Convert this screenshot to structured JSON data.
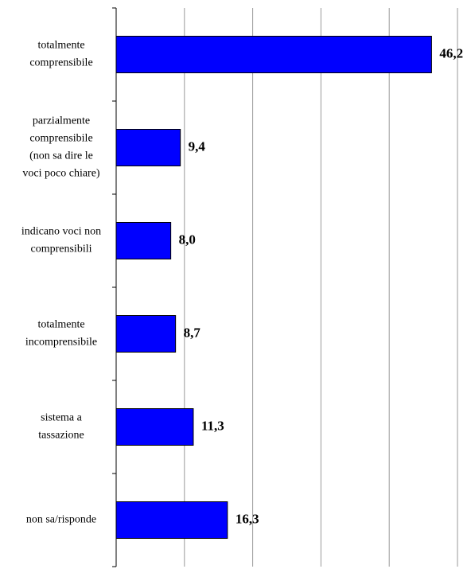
{
  "chart_data": {
    "type": "bar",
    "orientation": "horizontal",
    "categories": [
      "totalmente comprensibile",
      "parzialmente comprensibile (non sa dire le voci poco chiare)",
      "indicano voci non comprensibili",
      "totalmente incomprensibile",
      "sistema a tassazione",
      "non sa/risponde"
    ],
    "values": [
      46.2,
      9.4,
      8.0,
      8.7,
      11.3,
      16.3
    ],
    "value_labels": [
      "46,2",
      "9,4",
      "8,0",
      "8,7",
      "11,3",
      "16,3"
    ],
    "color": "#0000ff",
    "xlim": [
      0,
      50
    ],
    "xticks": [
      0,
      10,
      20,
      30,
      40,
      50
    ],
    "grid": true
  }
}
